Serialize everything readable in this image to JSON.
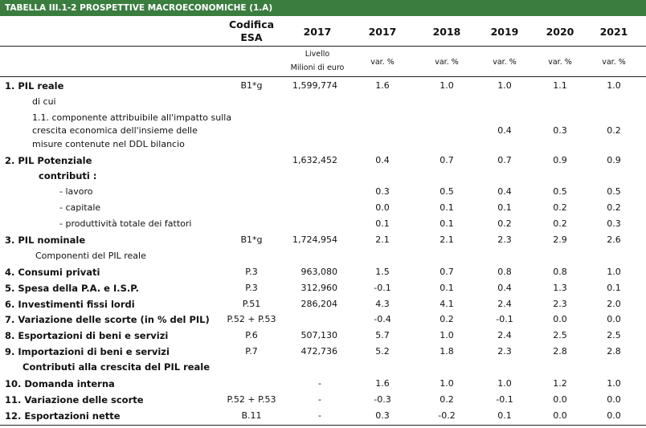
{
  "title": "TABELLA III.1-2 PROSPETTIVE MACROECONOMICHE (1.A)",
  "header": {
    "codifica": "Codifica",
    "esa": "ESA",
    "years": [
      "2017",
      "2017",
      "2018",
      "2019",
      "2020",
      "2021"
    ],
    "livello": "Livello",
    "milioni": "Milioni di euro",
    "var": "var. %"
  },
  "rows": [
    {
      "label": "1. PIL reale",
      "bold": true,
      "code": "B1*g",
      "level": "1,599,774",
      "v": [
        "1.6",
        "1.0",
        "1.0",
        "1.1",
        "1.0"
      ]
    },
    {
      "label": "di cui",
      "bold": false,
      "code": "",
      "level": "",
      "v": [
        "",
        "",
        "",
        "",
        ""
      ]
    },
    {
      "label": "1.1. componente attribuibile all'impatto sulla",
      "bold": false,
      "code": "",
      "level": "",
      "v": [
        "",
        "",
        "",
        "",
        ""
      ]
    },
    {
      "label": "crescita economica dell'insieme delle",
      "bold": false,
      "code": "",
      "level": "",
      "v": [
        "",
        "",
        "0.4",
        "0.3",
        "0.2"
      ]
    },
    {
      "label": "misure contenute nel DDL bilancio",
      "bold": false,
      "code": "",
      "level": "",
      "v": [
        "",
        "",
        "",
        "",
        ""
      ]
    },
    {
      "label": "2. PIL Potenziale",
      "bold": true,
      "code": "",
      "level": "1,632,452",
      "v": [
        "0.4",
        "0.7",
        "0.7",
        "0.9",
        "0.9"
      ]
    },
    {
      "label": "contributi :",
      "bold": true,
      "code": "",
      "level": "",
      "v": [
        "",
        "",
        "",
        "",
        ""
      ]
    },
    {
      "label": "- lavoro",
      "bold": false,
      "code": "",
      "level": "",
      "v": [
        "0.3",
        "0.5",
        "0.4",
        "0.5",
        "0.5"
      ]
    },
    {
      "label": "- capitale",
      "bold": false,
      "code": "",
      "level": "",
      "v": [
        "0.0",
        "0.1",
        "0.1",
        "0.2",
        "0.2"
      ]
    },
    {
      "label": "- produttività totale dei fattori",
      "bold": false,
      "code": "",
      "level": "",
      "v": [
        "0.1",
        "0.1",
        "0.2",
        "0.2",
        "0.3"
      ]
    },
    {
      "label": "3. PIL nominale",
      "bold": true,
      "code": "B1*g",
      "level": "1,724,954",
      "v": [
        "2.1",
        "2.1",
        "2.3",
        "2.9",
        "2.6"
      ]
    },
    {
      "label": "Componenti del PIL reale",
      "bold": false,
      "code": "",
      "level": "",
      "v": [
        "",
        "",
        "",
        "",
        ""
      ]
    },
    {
      "label": "4. Consumi privati",
      "bold": true,
      "code": "P.3",
      "level": "963,080",
      "v": [
        "1.5",
        "0.7",
        "0.8",
        "0.8",
        "1.0"
      ]
    },
    {
      "label": "5. Spesa della P.A. e I.S.P.",
      "bold": true,
      "code": "P.3",
      "level": "312,960",
      "v": [
        "-0.1",
        "0.1",
        "0.4",
        "1.3",
        "0.1"
      ]
    },
    {
      "label": "6. Investimenti fissi lordi",
      "bold": true,
      "code": "P.51",
      "level": "286,204",
      "v": [
        "4.3",
        "4.1",
        "2.4",
        "2.3",
        "2.0"
      ]
    },
    {
      "label": "7. Variazione delle scorte (in % del PIL)",
      "bold": true,
      "code": "P.52 + P.53",
      "level": "",
      "v": [
        "-0.4",
        "0.2",
        "-0.1",
        "0.0",
        "0.0"
      ]
    },
    {
      "label": "8. Esportazioni di beni e servizi",
      "bold": true,
      "code": "P.6",
      "level": "507,130",
      "v": [
        "5.7",
        "1.0",
        "2.4",
        "2.5",
        "2.5"
      ]
    },
    {
      "label": "9. Importazioni di beni e servizi",
      "bold": true,
      "code": "P.7",
      "level": "472,736",
      "v": [
        "5.2",
        "1.8",
        "2.3",
        "2.8",
        "2.8"
      ]
    },
    {
      "label": "Contributi alla crescita del PIL reale",
      "bold": true,
      "code": "",
      "level": "",
      "v": [
        "",
        "",
        "",
        "",
        ""
      ]
    },
    {
      "label": "10. Domanda interna",
      "bold": true,
      "code": "",
      "level": "-",
      "v": [
        "1.6",
        "1.0",
        "1.0",
        "1.2",
        "1.0"
      ]
    },
    {
      "label": "11. Variazione delle scorte",
      "bold": true,
      "code": "P.52 + P.53",
      "level": "-",
      "v": [
        "-0.3",
        "0.2",
        "-0.1",
        "0.0",
        "0.0"
      ]
    },
    {
      "label": "12. Esportazioni nette",
      "bold": true,
      "code": "B.11",
      "level": "-",
      "v": [
        "0.3",
        "-0.2",
        "0.1",
        "0.0",
        "0.0"
      ]
    }
  ]
}
